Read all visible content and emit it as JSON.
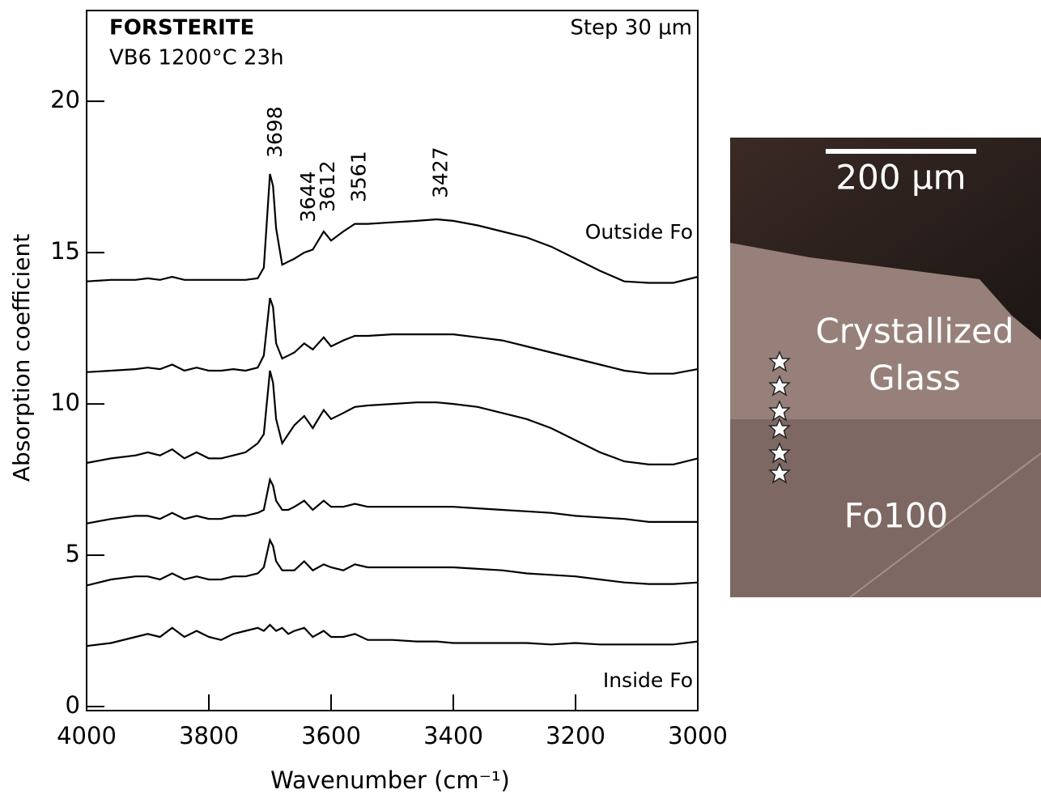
{
  "chart_data": {
    "type": "line",
    "title": "FORSTERITE",
    "subtitle": "VB6 1200°C 23h",
    "annotation": "Step 30 µm",
    "x_label": "Wavenumber (cm⁻¹)",
    "y_label": "Absorption coefficient",
    "color": "#000000",
    "xlim": [
      4000,
      3000
    ],
    "ylim": [
      0,
      23
    ],
    "xticks": [
      4000,
      3800,
      3600,
      3400,
      3200,
      3000
    ],
    "yticks": [
      0,
      5,
      10,
      15,
      20
    ],
    "peak_labels": [
      3698,
      3644,
      3612,
      3561,
      3427
    ],
    "x": [
      4000,
      3960,
      3920,
      3900,
      3880,
      3860,
      3840,
      3820,
      3800,
      3780,
      3760,
      3740,
      3720,
      3710,
      3700,
      3695,
      3690,
      3680,
      3670,
      3660,
      3644,
      3630,
      3612,
      3600,
      3580,
      3561,
      3540,
      3500,
      3460,
      3427,
      3400,
      3360,
      3320,
      3280,
      3240,
      3200,
      3160,
      3120,
      3080,
      3040,
      3000
    ],
    "series": [
      {
        "name": "Outside Fo",
        "values": [
          14.05,
          14.1,
          14.1,
          14.15,
          14.1,
          14.2,
          14.1,
          14.1,
          14.1,
          14.1,
          14.1,
          14.1,
          14.15,
          14.5,
          17.6,
          17.2,
          15.8,
          14.6,
          14.7,
          14.8,
          15.0,
          15.1,
          15.7,
          15.4,
          15.7,
          15.95,
          15.95,
          16.0,
          16.05,
          16.1,
          16.05,
          15.9,
          15.7,
          15.5,
          15.2,
          14.8,
          14.4,
          14.05,
          14.0,
          14.0,
          14.2
        ]
      },
      {
        "values": [
          11.05,
          11.1,
          11.15,
          11.2,
          11.15,
          11.3,
          11.1,
          11.2,
          11.1,
          11.1,
          11.15,
          11.1,
          11.2,
          11.6,
          13.5,
          13.2,
          12.0,
          11.5,
          11.6,
          11.7,
          12.0,
          11.8,
          12.2,
          11.9,
          12.1,
          12.25,
          12.25,
          12.3,
          12.3,
          12.3,
          12.3,
          12.2,
          12.1,
          11.9,
          11.7,
          11.5,
          11.3,
          11.1,
          11.0,
          11.0,
          11.15
        ]
      },
      {
        "values": [
          8.05,
          8.2,
          8.3,
          8.4,
          8.3,
          8.5,
          8.2,
          8.4,
          8.2,
          8.2,
          8.3,
          8.4,
          8.7,
          9.0,
          11.1,
          10.7,
          9.5,
          8.7,
          9.0,
          9.3,
          9.6,
          9.2,
          9.8,
          9.5,
          9.7,
          9.9,
          9.95,
          10.0,
          10.05,
          10.05,
          10.0,
          9.9,
          9.7,
          9.5,
          9.2,
          8.8,
          8.4,
          8.1,
          8.0,
          8.0,
          8.2
        ]
      },
      {
        "values": [
          6.05,
          6.2,
          6.3,
          6.3,
          6.2,
          6.4,
          6.2,
          6.3,
          6.2,
          6.2,
          6.3,
          6.3,
          6.4,
          6.5,
          7.5,
          7.3,
          6.8,
          6.5,
          6.5,
          6.6,
          6.8,
          6.5,
          6.8,
          6.6,
          6.6,
          6.7,
          6.6,
          6.6,
          6.6,
          6.6,
          6.6,
          6.55,
          6.5,
          6.45,
          6.4,
          6.3,
          6.25,
          6.2,
          6.1,
          6.1,
          6.1
        ]
      },
      {
        "values": [
          4.0,
          4.2,
          4.3,
          4.3,
          4.2,
          4.4,
          4.2,
          4.3,
          4.2,
          4.2,
          4.3,
          4.3,
          4.4,
          4.6,
          5.5,
          5.3,
          4.8,
          4.5,
          4.5,
          4.5,
          4.8,
          4.5,
          4.7,
          4.6,
          4.5,
          4.7,
          4.6,
          4.6,
          4.6,
          4.6,
          4.6,
          4.55,
          4.5,
          4.4,
          4.35,
          4.3,
          4.2,
          4.1,
          4.05,
          4.05,
          4.1
        ]
      },
      {
        "name": "Inside Fo",
        "values": [
          2.0,
          2.1,
          2.3,
          2.4,
          2.3,
          2.6,
          2.3,
          2.5,
          2.3,
          2.2,
          2.4,
          2.5,
          2.6,
          2.5,
          2.7,
          2.6,
          2.5,
          2.6,
          2.4,
          2.5,
          2.6,
          2.3,
          2.5,
          2.3,
          2.3,
          2.4,
          2.2,
          2.2,
          2.15,
          2.15,
          2.1,
          2.1,
          2.1,
          2.1,
          2.05,
          2.1,
          2.05,
          2.05,
          2.05,
          2.05,
          2.15
        ]
      }
    ]
  },
  "photo": {
    "scale_bar": "200 µm",
    "labels": [
      "Crystallized",
      "Glass",
      "Fo100"
    ]
  }
}
